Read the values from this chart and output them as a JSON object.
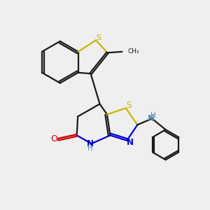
{
  "background_color": "#efefef",
  "bond_color": "#1a1a1a",
  "sulfur_color": "#c8b400",
  "nitrogen_color": "#0000cc",
  "oxygen_color": "#cc0000",
  "nh_color": "#5588bb",
  "line_width": 1.6,
  "figsize": [
    3.0,
    3.0
  ],
  "dpi": 100,
  "xlim": [
    0,
    10
  ],
  "ylim": [
    0,
    10
  ]
}
